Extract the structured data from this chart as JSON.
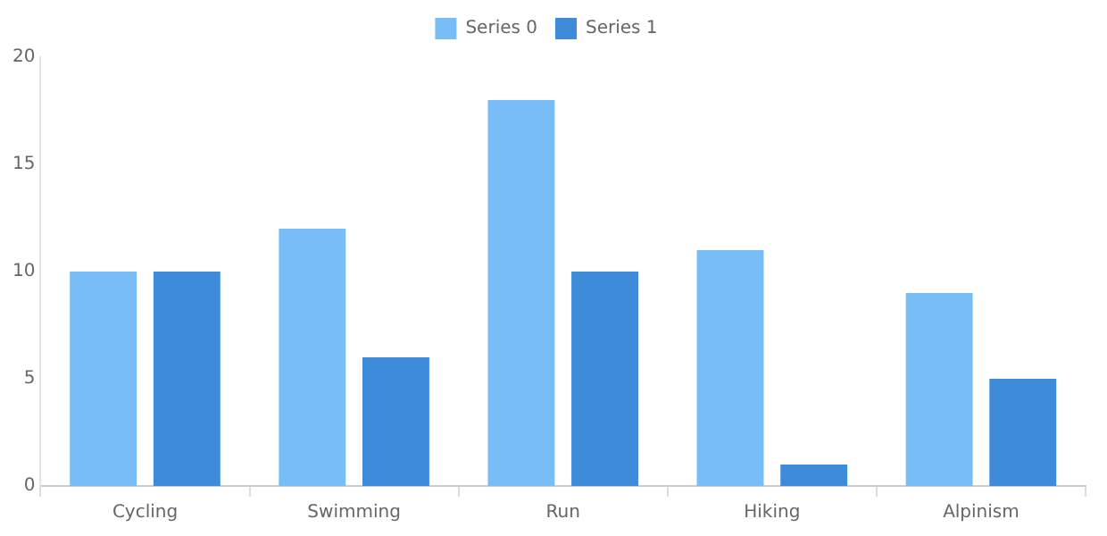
{
  "chart_data": {
    "type": "bar",
    "categories": [
      "Cycling",
      "Swimming",
      "Run",
      "Hiking",
      "Alpinism"
    ],
    "series": [
      {
        "name": "Series 0",
        "color": "#78bdf5",
        "values": [
          10,
          12,
          18,
          11,
          9
        ]
      },
      {
        "name": "Series 1",
        "color": "#3d8bd9",
        "values": [
          10,
          6,
          10,
          1,
          5
        ]
      }
    ],
    "ylim": [
      0,
      20
    ],
    "yticks": [
      0,
      5,
      10,
      15,
      20
    ],
    "grid": false,
    "legend": "top"
  }
}
